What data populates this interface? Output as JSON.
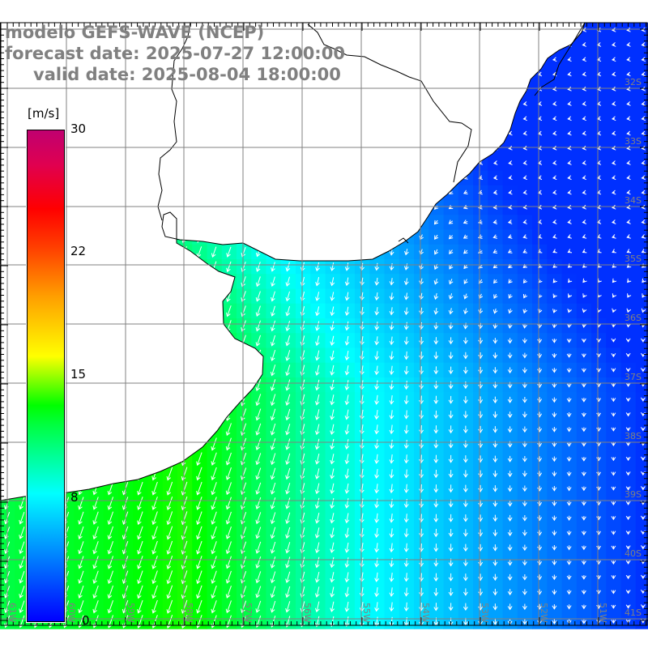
{
  "header": {
    "model": "modelo GEFS-WAVE (NCEP)",
    "forecast": "forecast date: 2025-07-27 12:00:00",
    "valid": "valid date: 2025-08-04 18:00:00"
  },
  "colorbar": {
    "unit": "[m/s]",
    "ticks": [
      "30",
      "22",
      "15",
      "8",
      "0"
    ],
    "colors": {
      "0": "#0000ff",
      "8": "#00ffff",
      "12": "#00ff00",
      "15": "#ffff00",
      "22": "#ff0000",
      "30": "#c00070"
    }
  },
  "axes": {
    "lon_labels": [
      "61W",
      "60W",
      "59W",
      "58W",
      "57W",
      "56W",
      "55W",
      "54W",
      "53W",
      "52W",
      "51W"
    ],
    "lat_labels": [
      "32S",
      "33S",
      "34S",
      "35S",
      "36S",
      "37S",
      "38S",
      "39S",
      "40S",
      "41S"
    ],
    "grid_color": "#808080",
    "label_color": "#808080"
  }
}
